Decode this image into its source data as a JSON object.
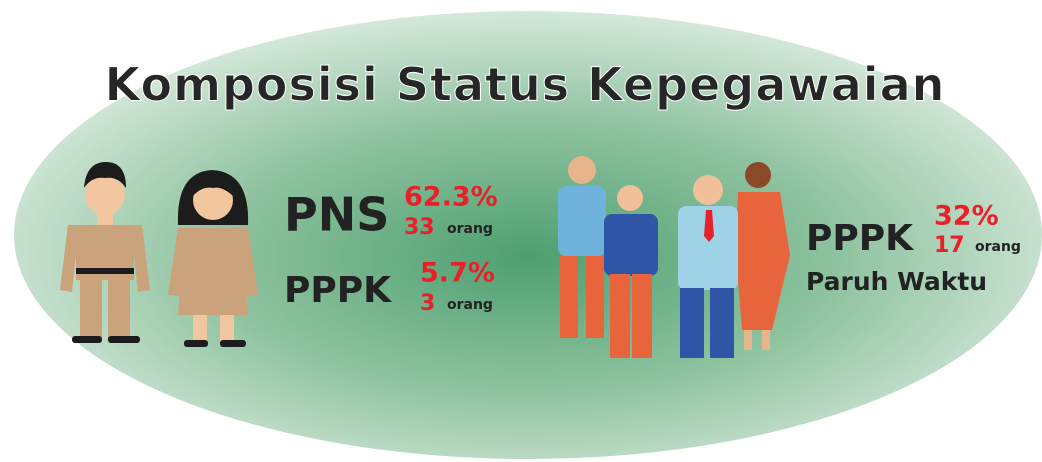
{
  "title": "Komposisi Status Kepegawaian",
  "groups": [
    {
      "label": "PNS",
      "percent": "62.3%",
      "count": "33",
      "unit": "orang"
    },
    {
      "label": "PPPK",
      "percent": "5.7%",
      "count": "3",
      "unit": "orang"
    },
    {
      "label": "PPPK",
      "percent": "32%",
      "count": "17",
      "unit": "orang",
      "note": "Paruh Waktu"
    }
  ]
}
